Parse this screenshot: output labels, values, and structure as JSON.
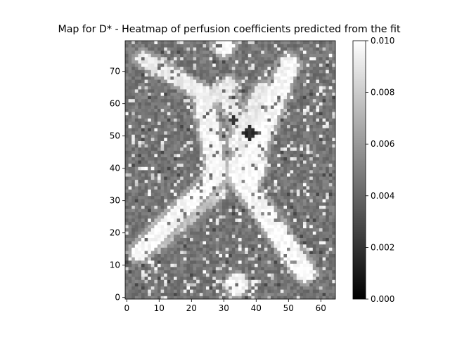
{
  "chart_data": {
    "type": "heatmap",
    "title": "Map for D* - Heatmap of perfusion coefficients predicted from the fit",
    "xlabel": "",
    "ylabel": "",
    "grid_size": [
      65,
      80
    ],
    "xlim": [
      0,
      64
    ],
    "ylim": [
      0,
      79
    ],
    "y_origin": "bottom",
    "x_ticks": [
      0,
      10,
      20,
      30,
      40,
      50,
      60
    ],
    "y_ticks": [
      0,
      10,
      20,
      30,
      40,
      50,
      60,
      70
    ],
    "colormap": "gray",
    "value_range": [
      0.0,
      0.01
    ],
    "colorbar": {
      "ticks": [
        "0.000",
        "0.002",
        "0.004",
        "0.006",
        "0.008",
        "0.010"
      ],
      "tick_values": [
        0.0,
        0.002,
        0.004,
        0.006,
        0.008,
        0.01
      ],
      "position": "right"
    },
    "background_value": 0.0046,
    "noise_speckle": "sparse bright speckles (~0.008-0.010) scattered over the background",
    "structures": [
      {
        "shape": "line",
        "from": [
          4,
          14
        ],
        "to": [
          28,
          38
        ],
        "width": 2.8,
        "value": 0.0098
      },
      {
        "shape": "line",
        "from": [
          10,
          16
        ],
        "to": [
          30,
          33
        ],
        "width": 1.4,
        "value": 0.0075
      },
      {
        "shape": "line",
        "from": [
          36,
          36
        ],
        "to": [
          55,
          8
        ],
        "width": 3.0,
        "value": 0.0098
      },
      {
        "shape": "line",
        "from": [
          40,
          30
        ],
        "to": [
          53,
          12
        ],
        "width": 1.4,
        "value": 0.0078
      },
      {
        "shape": "line",
        "from": [
          28,
          38
        ],
        "to": [
          24,
          60
        ],
        "width": 2.8,
        "value": 0.0096
      },
      {
        "shape": "line",
        "from": [
          36,
          36
        ],
        "to": [
          50,
          72
        ],
        "width": 3.0,
        "value": 0.0097
      },
      {
        "shape": "line",
        "from": [
          5,
          74
        ],
        "to": [
          26,
          62
        ],
        "width": 2.2,
        "value": 0.0092
      },
      {
        "shape": "line",
        "from": [
          26,
          62
        ],
        "to": [
          32,
          66
        ],
        "width": 2.0,
        "value": 0.009
      },
      {
        "shape": "line",
        "from": [
          30,
          64
        ],
        "to": [
          36,
          52
        ],
        "width": 2.5,
        "value": 0.0092
      },
      {
        "shape": "line",
        "from": [
          36,
          52
        ],
        "to": [
          42,
          64
        ],
        "width": 2.5,
        "value": 0.0092
      },
      {
        "shape": "line",
        "from": [
          8,
          22
        ],
        "to": [
          20,
          32
        ],
        "width": 1.2,
        "value": 0.0072
      },
      {
        "shape": "blob",
        "center": [
          37,
          40
        ],
        "radius": 5.5,
        "value": 0.0098
      },
      {
        "shape": "blob",
        "center": [
          35,
          48
        ],
        "radius": 3.5,
        "value": 0.0094
      },
      {
        "shape": "blob",
        "center": [
          34,
          4
        ],
        "radius": 3.2,
        "value": 0.0095
      },
      {
        "shape": "blob",
        "center": [
          30,
          78
        ],
        "radius": 3.0,
        "value": 0.0098
      },
      {
        "shape": "blob",
        "center": [
          38,
          51
        ],
        "radius": 2.0,
        "value": 0.0018
      },
      {
        "shape": "blob",
        "center": [
          33,
          55
        ],
        "radius": 1.2,
        "value": 0.0022
      }
    ]
  }
}
